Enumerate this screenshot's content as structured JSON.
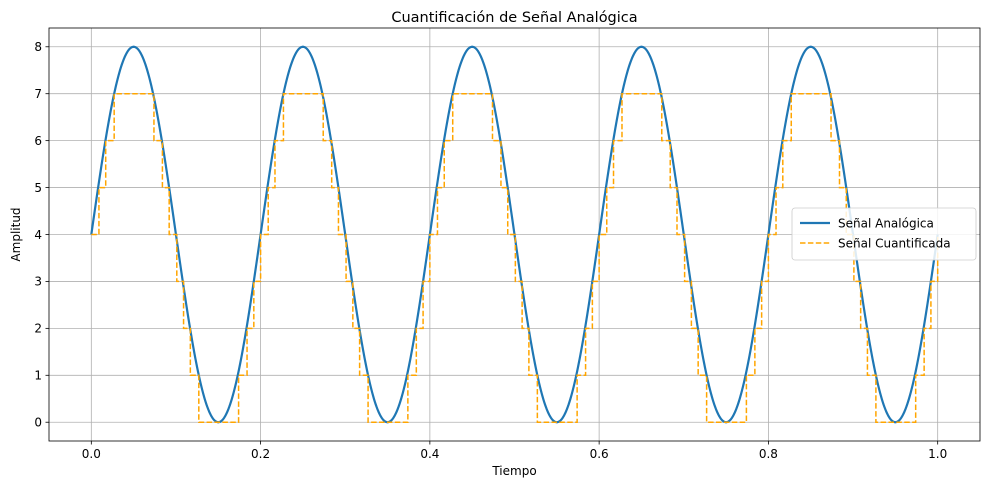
{
  "chart_data": {
    "type": "line",
    "title": "Cuantificación de Señal Analógica",
    "xlabel": "Tiempo",
    "ylabel": "Amplitud",
    "xlim": [
      -0.05,
      1.05
    ],
    "ylim": [
      -0.4,
      8.4
    ],
    "xticks": [
      "0.0",
      "0.2",
      "0.4",
      "0.6",
      "0.8",
      "1.0"
    ],
    "yticks": [
      "0",
      "1",
      "2",
      "3",
      "4",
      "5",
      "6",
      "7",
      "8"
    ],
    "grid": true,
    "legend_position": "center-right",
    "series": [
      {
        "name": "Señal Analógica",
        "style": "solid",
        "color": "#1f77b4",
        "function": "4 + 4*sin(2*pi*5*t)",
        "x_range": [
          0,
          1
        ]
      },
      {
        "name": "Señal Cuantificada",
        "style": "dashed-step",
        "color": "#ffa500",
        "function": "min(7, floor(4 + 4*sin(2*pi*5*t)))",
        "x_range": [
          0,
          1
        ]
      }
    ]
  }
}
